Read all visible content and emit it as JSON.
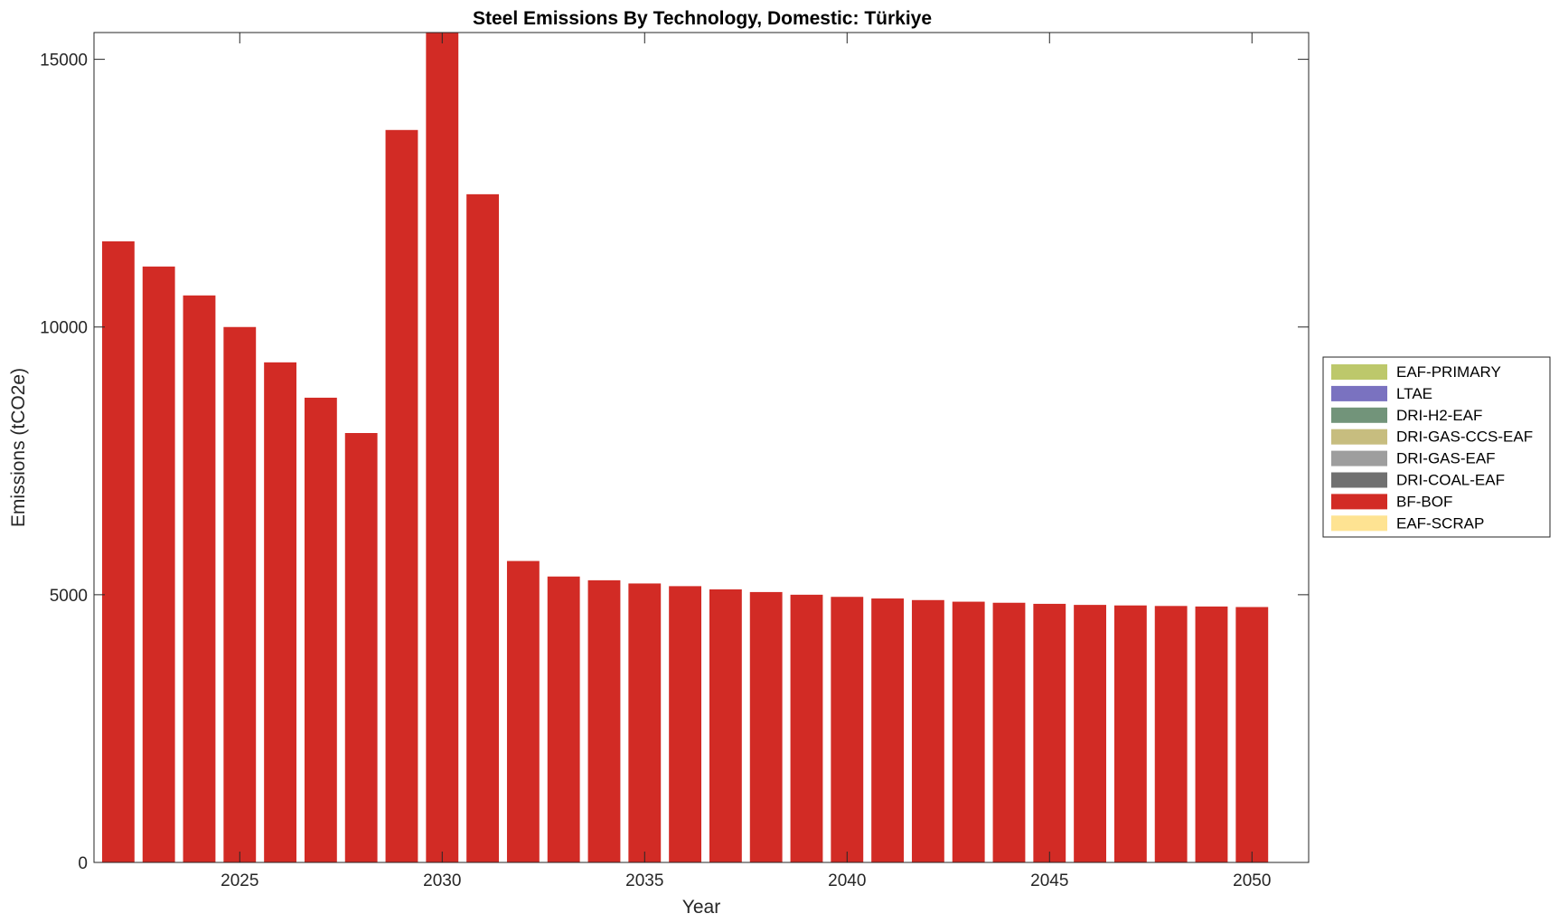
{
  "chart_data": {
    "type": "bar",
    "stacked": true,
    "title": "Steel Emissions By Technology, Domestic: Türkiye",
    "xlabel": "Year",
    "ylabel": "Emissions (tCO2e)",
    "xlim": [
      2021.4,
      2051.4
    ],
    "ylim": [
      0,
      15500
    ],
    "xticks": [
      2025,
      2030,
      2035,
      2040,
      2045,
      2050
    ],
    "yticks": [
      0,
      5000,
      10000,
      15000
    ],
    "grid": false,
    "legend_position": "east-outside",
    "x": [
      2022,
      2023,
      2024,
      2025,
      2026,
      2027,
      2028,
      2029,
      2030,
      2031,
      2032,
      2033,
      2034,
      2035,
      2036,
      2037,
      2038,
      2039,
      2040,
      2041,
      2042,
      2043,
      2044,
      2045,
      2046,
      2047,
      2048,
      2049,
      2050
    ],
    "series": [
      {
        "name": "EAF-PRIMARY",
        "color": "#bdc86b",
        "values": [
          0,
          0,
          0,
          0,
          0,
          0,
          0,
          0,
          0,
          0,
          0,
          0,
          0,
          0,
          0,
          0,
          0,
          0,
          0,
          0,
          0,
          0,
          0,
          0,
          0,
          0,
          0,
          0,
          0
        ]
      },
      {
        "name": "LTAE",
        "color": "#7a72c0",
        "values": [
          0,
          0,
          0,
          0,
          0,
          0,
          0,
          0,
          0,
          0,
          0,
          0,
          0,
          0,
          0,
          0,
          0,
          0,
          0,
          0,
          0,
          0,
          0,
          0,
          0,
          0,
          0,
          0,
          0
        ]
      },
      {
        "name": "DRI-H2-EAF",
        "color": "#72947a",
        "values": [
          0,
          0,
          0,
          0,
          0,
          0,
          0,
          0,
          0,
          0,
          0,
          0,
          0,
          0,
          0,
          0,
          0,
          0,
          0,
          0,
          0,
          0,
          0,
          0,
          0,
          0,
          0,
          0,
          0
        ]
      },
      {
        "name": "DRI-GAS-CCS-EAF",
        "color": "#c7bd7f",
        "values": [
          0,
          0,
          0,
          0,
          0,
          0,
          0,
          0,
          0,
          0,
          0,
          0,
          0,
          0,
          0,
          0,
          0,
          0,
          0,
          0,
          0,
          0,
          0,
          0,
          0,
          0,
          0,
          0,
          0
        ]
      },
      {
        "name": "DRI-GAS-EAF",
        "color": "#9e9e9e",
        "values": [
          0,
          0,
          0,
          0,
          0,
          0,
          0,
          0,
          0,
          0,
          0,
          0,
          0,
          0,
          0,
          0,
          0,
          0,
          0,
          0,
          0,
          0,
          0,
          0,
          0,
          0,
          0,
          0,
          0
        ]
      },
      {
        "name": "DRI-COAL-EAF",
        "color": "#707070",
        "values": [
          0,
          0,
          0,
          0,
          0,
          0,
          0,
          0,
          0,
          0,
          0,
          0,
          0,
          0,
          0,
          0,
          0,
          0,
          0,
          0,
          0,
          0,
          0,
          0,
          0,
          0,
          0,
          0,
          0
        ]
      },
      {
        "name": "BF-BOF",
        "color": "#d22b25",
        "values": [
          11600,
          11130,
          10590,
          10000,
          9340,
          8680,
          8020,
          13680,
          15500,
          12480,
          5630,
          5340,
          5270,
          5210,
          5160,
          5100,
          5050,
          5000,
          4960,
          4930,
          4900,
          4870,
          4850,
          4830,
          4810,
          4800,
          4790,
          4780,
          4770
        ]
      },
      {
        "name": "EAF-SCRAP",
        "color": "#fee392",
        "values": [
          0,
          0,
          0,
          0,
          0,
          0,
          0,
          0,
          0,
          0,
          0,
          0,
          0,
          0,
          0,
          0,
          0,
          0,
          0,
          0,
          0,
          0,
          0,
          0,
          0,
          0,
          0,
          0,
          0
        ]
      }
    ]
  }
}
